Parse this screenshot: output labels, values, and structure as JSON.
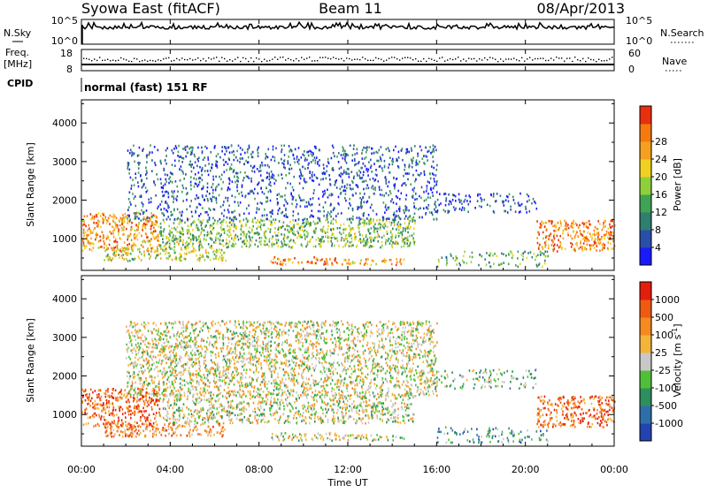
{
  "header": {
    "station": "Syowa East (fitACF)",
    "beam": "Beam 11",
    "date": "08/Apr/2013"
  },
  "strip_panels": {
    "nsky": {
      "label": "N.Sky",
      "right_label": "N.Search",
      "left_ticks": [
        "10^5",
        "10^0"
      ],
      "right_ticks": [
        "10^5",
        "10^0"
      ]
    },
    "freq": {
      "label_top": "Freq.",
      "label_unit": "[MHz]",
      "left_ticks": [
        "18",
        "8"
      ],
      "right_ticks": [
        "60",
        "0"
      ],
      "right_label": "Nave"
    },
    "cpid": {
      "label": "CPID",
      "text": "normal (fast) 151 RF"
    }
  },
  "x_axis": {
    "label": "Time UT",
    "ticks": [
      "00:00",
      "04:00",
      "08:00",
      "12:00",
      "16:00",
      "20:00",
      "00:00"
    ],
    "range_hours": [
      0,
      24
    ]
  },
  "chart_data": [
    {
      "type": "heatmap",
      "name": "Power",
      "ylabel": "Slant Range [km]",
      "ylim": [
        180,
        4600
      ],
      "yticks": [
        1000,
        2000,
        3000,
        4000
      ],
      "xlim": [
        0,
        24
      ],
      "colorbar": {
        "label": "Power [dB]",
        "range": [
          0,
          32
        ],
        "ticks": [
          "4",
          "8",
          "12",
          "16",
          "20",
          "24",
          "28"
        ],
        "colors": [
          "#1a1aff",
          "#2a4fa8",
          "#2f7f6f",
          "#3fa356",
          "#8fcf3a",
          "#f0d020",
          "#f7a020",
          "#f47a10",
          "#e83010"
        ]
      },
      "regions": [
        {
          "t0": 0.0,
          "t1": 3.5,
          "r0": 700,
          "r1": 1700,
          "level": 0.75
        },
        {
          "t0": 1.0,
          "t1": 6.5,
          "r0": 450,
          "r1": 800,
          "level": 0.55
        },
        {
          "t0": 3.5,
          "t1": 15.0,
          "r0": 800,
          "r1": 1550,
          "level": 0.45
        },
        {
          "t0": 8.5,
          "t1": 11.5,
          "r0": 350,
          "r1": 550,
          "level": 0.85
        },
        {
          "t0": 11.5,
          "t1": 14.5,
          "r0": 350,
          "r1": 500,
          "level": 0.7
        },
        {
          "t0": 2.0,
          "t1": 16.0,
          "r0": 1500,
          "r1": 3450,
          "level": 0.18
        },
        {
          "t0": 15.8,
          "t1": 20.5,
          "r0": 1700,
          "r1": 2200,
          "level": 0.15
        },
        {
          "t0": 16.0,
          "t1": 21.0,
          "r0": 300,
          "r1": 700,
          "level": 0.4
        },
        {
          "t0": 20.5,
          "t1": 24.0,
          "r0": 700,
          "r1": 1500,
          "level": 0.8
        }
      ]
    },
    {
      "type": "heatmap",
      "name": "Velocity",
      "ylabel": "Slant Range [km]",
      "ylim": [
        180,
        4600
      ],
      "yticks": [
        1000,
        2000,
        3000,
        4000
      ],
      "xlim": [
        0,
        24
      ],
      "colorbar": {
        "label": "Velocity [m s^-1]",
        "ticks": [
          "1000",
          "500",
          "100",
          "25",
          "-25",
          "-100",
          "-500",
          "-1000"
        ],
        "colors": [
          "#2344b0",
          "#2f6fa8",
          "#2e8f5e",
          "#4fbf3a",
          "#c8c8c8",
          "#f4b43a",
          "#f48a20",
          "#ee5a12",
          "#e41d0c"
        ]
      },
      "regions": [
        {
          "t0": 0.0,
          "t1": 3.5,
          "r0": 700,
          "r1": 1700,
          "level": 0.82
        },
        {
          "t0": 1.0,
          "t1": 6.5,
          "r0": 450,
          "r1": 800,
          "level": 0.72
        },
        {
          "t0": 3.5,
          "t1": 15.0,
          "r0": 800,
          "r1": 1550,
          "level": 0.5
        },
        {
          "t0": 8.5,
          "t1": 11.5,
          "r0": 350,
          "r1": 550,
          "level": 0.48
        },
        {
          "t0": 11.5,
          "t1": 14.5,
          "r0": 350,
          "r1": 500,
          "level": 0.5
        },
        {
          "t0": 2.0,
          "t1": 16.0,
          "r0": 1500,
          "r1": 3450,
          "level": 0.52
        },
        {
          "t0": 15.8,
          "t1": 20.5,
          "r0": 1700,
          "r1": 2200,
          "level": 0.4
        },
        {
          "t0": 16.0,
          "t1": 21.0,
          "r0": 300,
          "r1": 700,
          "level": 0.3
        },
        {
          "t0": 20.5,
          "t1": 24.0,
          "r0": 700,
          "r1": 1500,
          "level": 0.78
        }
      ]
    }
  ]
}
